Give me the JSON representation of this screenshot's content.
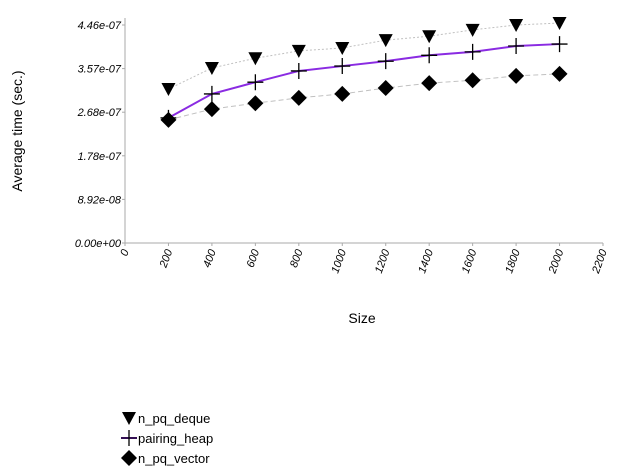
{
  "chart_data": {
    "type": "line",
    "title": "",
    "xlabel": "Size",
    "ylabel": "Average time (sec.)",
    "xlim": [
      0,
      2200
    ],
    "ylim": [
      0,
      4.46e-07
    ],
    "xticks": [
      "0",
      "200",
      "400",
      "600",
      "800",
      "1000",
      "1200",
      "1400",
      "1600",
      "1800",
      "2000",
      "2200"
    ],
    "yticks": [
      "0.00e+00",
      "8.92e-08",
      "1.78e-07",
      "2.68e-07",
      "3.57e-07",
      "4.46e-07"
    ],
    "grid": false,
    "legend_placement": "bottom-left",
    "x": [
      200,
      400,
      600,
      800,
      1000,
      1200,
      1400,
      1600,
      1800,
      2000
    ],
    "series": [
      {
        "name": "n_pq_deque",
        "marker": "triangle-down",
        "color": "#c0c0c0",
        "values": [
          3.15e-07,
          3.58e-07,
          3.78e-07,
          3.93e-07,
          3.99e-07,
          4.15e-07,
          4.23e-07,
          4.36e-07,
          4.46e-07,
          4.5e-07
        ]
      },
      {
        "name": "pairing_heap",
        "marker": "plus",
        "color": "#8a2be2",
        "values": [
          2.56e-07,
          3.05e-07,
          3.29e-07,
          3.52e-07,
          3.62e-07,
          3.72e-07,
          3.84e-07,
          3.91e-07,
          4.03e-07,
          4.07e-07
        ]
      },
      {
        "name": "n_pq_vector",
        "marker": "diamond",
        "color": "#c0c0c0",
        "values": [
          2.52e-07,
          2.74e-07,
          2.86e-07,
          2.97e-07,
          3.05e-07,
          3.17e-07,
          3.27e-07,
          3.33e-07,
          3.42e-07,
          3.46e-07
        ]
      }
    ]
  }
}
